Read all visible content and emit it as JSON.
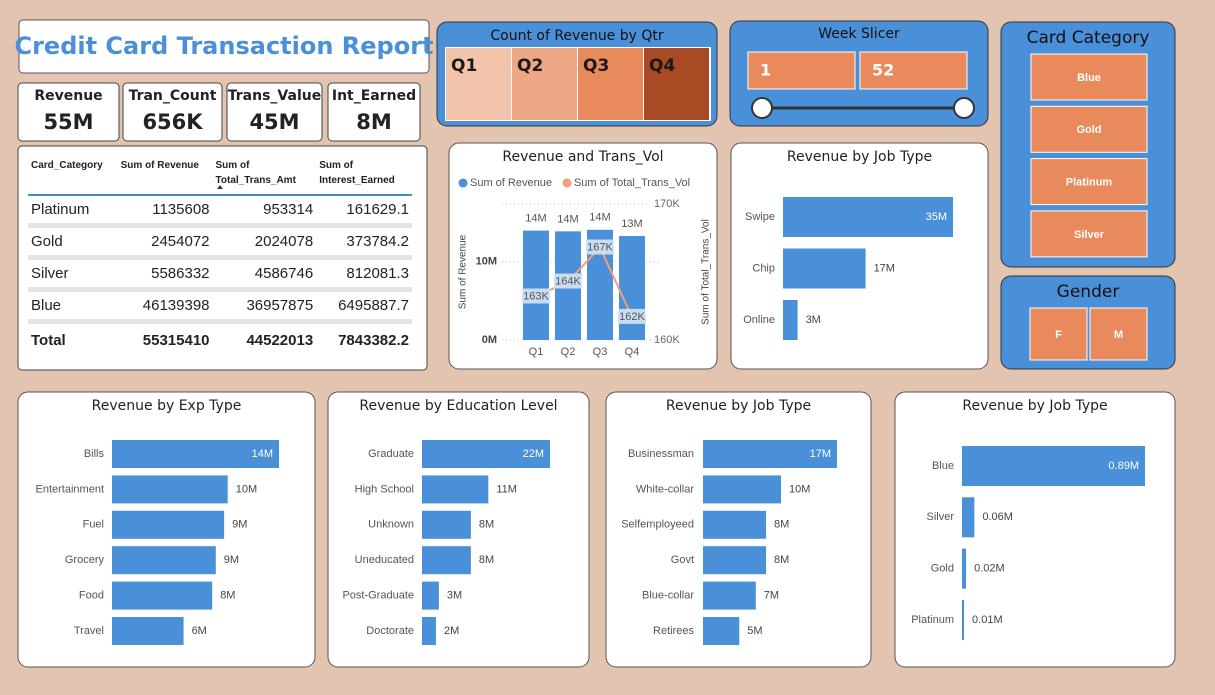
{
  "header": {
    "title": "Credit Card Transaction Report"
  },
  "kpis": [
    {
      "label": "Revenue",
      "value": "55M"
    },
    {
      "label": "Tran_Count",
      "value": "656K"
    },
    {
      "label": "Trans_Value",
      "value": "45M"
    },
    {
      "label": "Int_Earned",
      "value": "8M"
    }
  ],
  "table": {
    "columns": [
      "Card_Category",
      "Sum of Revenue",
      "Sum of Total_Trans_Amt",
      "Sum of Interest_Earned"
    ],
    "rows": [
      [
        "Platinum",
        1135608,
        953314,
        161629.1
      ],
      [
        "Gold",
        2454072,
        2024078,
        373784.2
      ],
      [
        "Silver",
        5586332,
        4586746,
        812081.3
      ],
      [
        "Blue",
        46139398,
        36957875,
        6495887.7
      ]
    ],
    "total": [
      "Total",
      55315410,
      44522013,
      7843382.2
    ]
  },
  "slicers": {
    "quarter": {
      "title": "Count of Revenue by Qtr",
      "items": [
        "Q1",
        "Q2",
        "Q3",
        "Q4"
      ],
      "colors": [
        "#f2c4ab",
        "#eda784",
        "#e98a5c",
        "#a84b24"
      ]
    },
    "week": {
      "title": "Week Slicer",
      "min": 1,
      "max": 52
    },
    "card_category": {
      "title": "Card Category",
      "items": [
        "Blue",
        "Gold",
        "Platinum",
        "Silver"
      ]
    },
    "gender": {
      "title": "Gender",
      "items": [
        "F",
        "M"
      ]
    }
  },
  "chart_data": [
    {
      "type": "combo",
      "title": "Revenue and Trans_Vol",
      "categories": [
        "Q1",
        "Q2",
        "Q3",
        "Q4"
      ],
      "y_label": "Sum of Revenue",
      "y2_label": "Sum of Total_Trans_Vol",
      "ylim": [
        0,
        17.4
      ],
      "yticks": [
        {
          "value": 0,
          "label": "0M"
        },
        {
          "value": 10,
          "label": "10M"
        }
      ],
      "y2lim": [
        160,
        170
      ],
      "y2ticks": [
        {
          "value": 160,
          "label": "160K"
        },
        {
          "value": 170,
          "label": "170K"
        }
      ],
      "grid": true,
      "series": [
        {
          "name": "Sum of Revenue",
          "color": "#4a90d9",
          "values": [
            14.0,
            13.9,
            14.1,
            13.3
          ],
          "value_labels": [
            "14M",
            "14M",
            "14M",
            "13M"
          ]
        },
        {
          "name": "Sum of Total_Trans_Vol",
          "color": "#f0a07a",
          "axis": "y2",
          "values": [
            163.2,
            164.3,
            166.8,
            161.7
          ],
          "value_labels": [
            "163K",
            "164K",
            "167K",
            "162K"
          ]
        }
      ]
    },
    {
      "type": "hbar",
      "title": "Revenue by Job Type",
      "color": "#4a90d9",
      "categories": [
        "Swipe",
        "Chip",
        "Online"
      ],
      "values": [
        35,
        17,
        3
      ],
      "value_labels": [
        "35M",
        "17M",
        "3M"
      ]
    },
    {
      "type": "hbar",
      "title": "Revenue by Exp Type",
      "color": "#4a90d9",
      "categories": [
        "Bills",
        "Entertainment",
        "Fuel",
        "Grocery",
        "Food",
        "Travel"
      ],
      "values": [
        14.0,
        9.7,
        9.4,
        8.7,
        8.4,
        6.0
      ],
      "value_labels": [
        "14M",
        "10M",
        "9M",
        "9M",
        "8M",
        "6M"
      ]
    },
    {
      "type": "hbar",
      "title": "Revenue by Education Level",
      "color": "#4a90d9",
      "categories": [
        "Graduate",
        "High School",
        "Unknown",
        "Uneducated",
        "Post-Graduate",
        "Doctorate"
      ],
      "values": [
        22.0,
        11.4,
        8.4,
        8.4,
        2.9,
        2.4
      ],
      "value_labels": [
        "22M",
        "11M",
        "8M",
        "8M",
        "3M",
        "2M"
      ]
    },
    {
      "type": "hbar",
      "title": "Revenue by Job Type",
      "color": "#4a90d9",
      "categories": [
        "Businessman",
        "White-collar",
        "Selfemployeed",
        "Govt",
        "Blue-collar",
        "Retirees"
      ],
      "values": [
        17.0,
        9.9,
        8.0,
        8.0,
        6.7,
        4.6
      ],
      "value_labels": [
        "17M",
        "10M",
        "8M",
        "8M",
        "7M",
        "5M"
      ]
    },
    {
      "type": "hbar",
      "title": "Revenue by Job Type",
      "color": "#4a90d9",
      "categories": [
        "Blue",
        "Silver",
        "Gold",
        "Platinum"
      ],
      "values": [
        0.89,
        0.06,
        0.02,
        0.01
      ],
      "value_labels": [
        "0.89M",
        "0.06M",
        "0.02M",
        "0.01M"
      ]
    }
  ]
}
